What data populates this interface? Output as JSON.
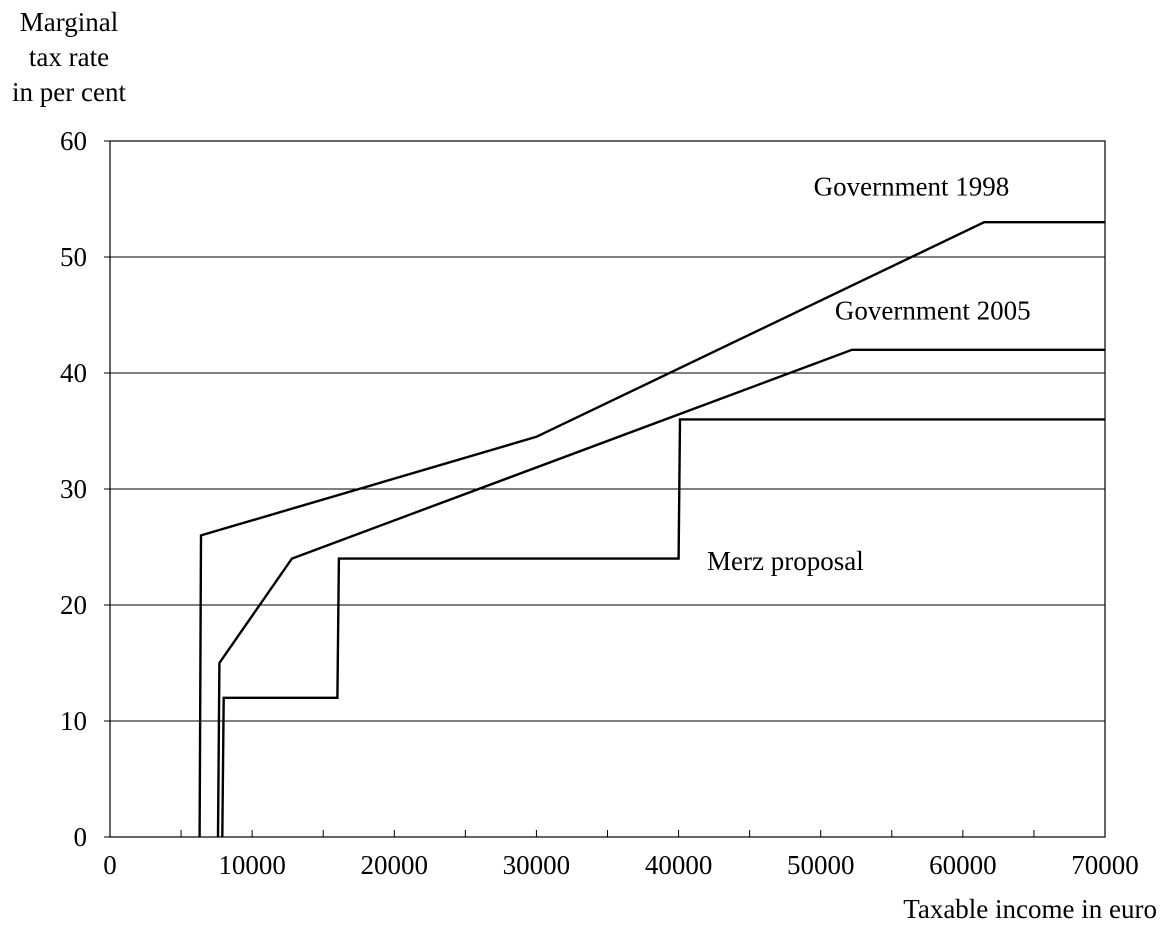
{
  "chart_data": {
    "type": "line",
    "title": "",
    "ylabel": "Marginal tax rate in per cent",
    "ylabel_lines": [
      "Marginal",
      "tax rate",
      "in per cent"
    ],
    "xlabel": "Taxable income in euro",
    "xlim": [
      0,
      70000
    ],
    "ylim": [
      0,
      60
    ],
    "x_ticks": [
      0,
      10000,
      20000,
      30000,
      40000,
      50000,
      60000,
      70000
    ],
    "x_tick_labels": [
      "0",
      "10000",
      "20000",
      "30000",
      "40000",
      "50000",
      "60000",
      "70000"
    ],
    "x_minor_ticks": [
      5000,
      15000,
      25000,
      35000,
      45000,
      55000,
      65000
    ],
    "y_ticks": [
      0,
      10,
      20,
      30,
      40,
      50,
      60
    ],
    "y_tick_labels": [
      "0",
      "10",
      "20",
      "30",
      "40",
      "50",
      "60"
    ],
    "grid": "horizontal",
    "legend": "none (inline labels)",
    "series": [
      {
        "name": "Government 1998",
        "points": [
          [
            6300,
            0
          ],
          [
            6400,
            26
          ],
          [
            30000,
            34.5
          ],
          [
            61500,
            53
          ],
          [
            70000,
            53
          ]
        ],
        "label_at": [
          49500,
          55.3
        ]
      },
      {
        "name": "Government 2005",
        "points": [
          [
            7600,
            0
          ],
          [
            7700,
            15
          ],
          [
            12800,
            24
          ],
          [
            52200,
            42
          ],
          [
            70000,
            42
          ]
        ],
        "label_at": [
          51000,
          44.6
        ]
      },
      {
        "name": "Merz proposal",
        "points": [
          [
            7900,
            0
          ],
          [
            8000,
            12
          ],
          [
            16000,
            12
          ],
          [
            16100,
            24
          ],
          [
            40000,
            24
          ],
          [
            40100,
            36
          ],
          [
            70000,
            36
          ]
        ],
        "label_at": [
          42000,
          23
        ]
      }
    ]
  }
}
